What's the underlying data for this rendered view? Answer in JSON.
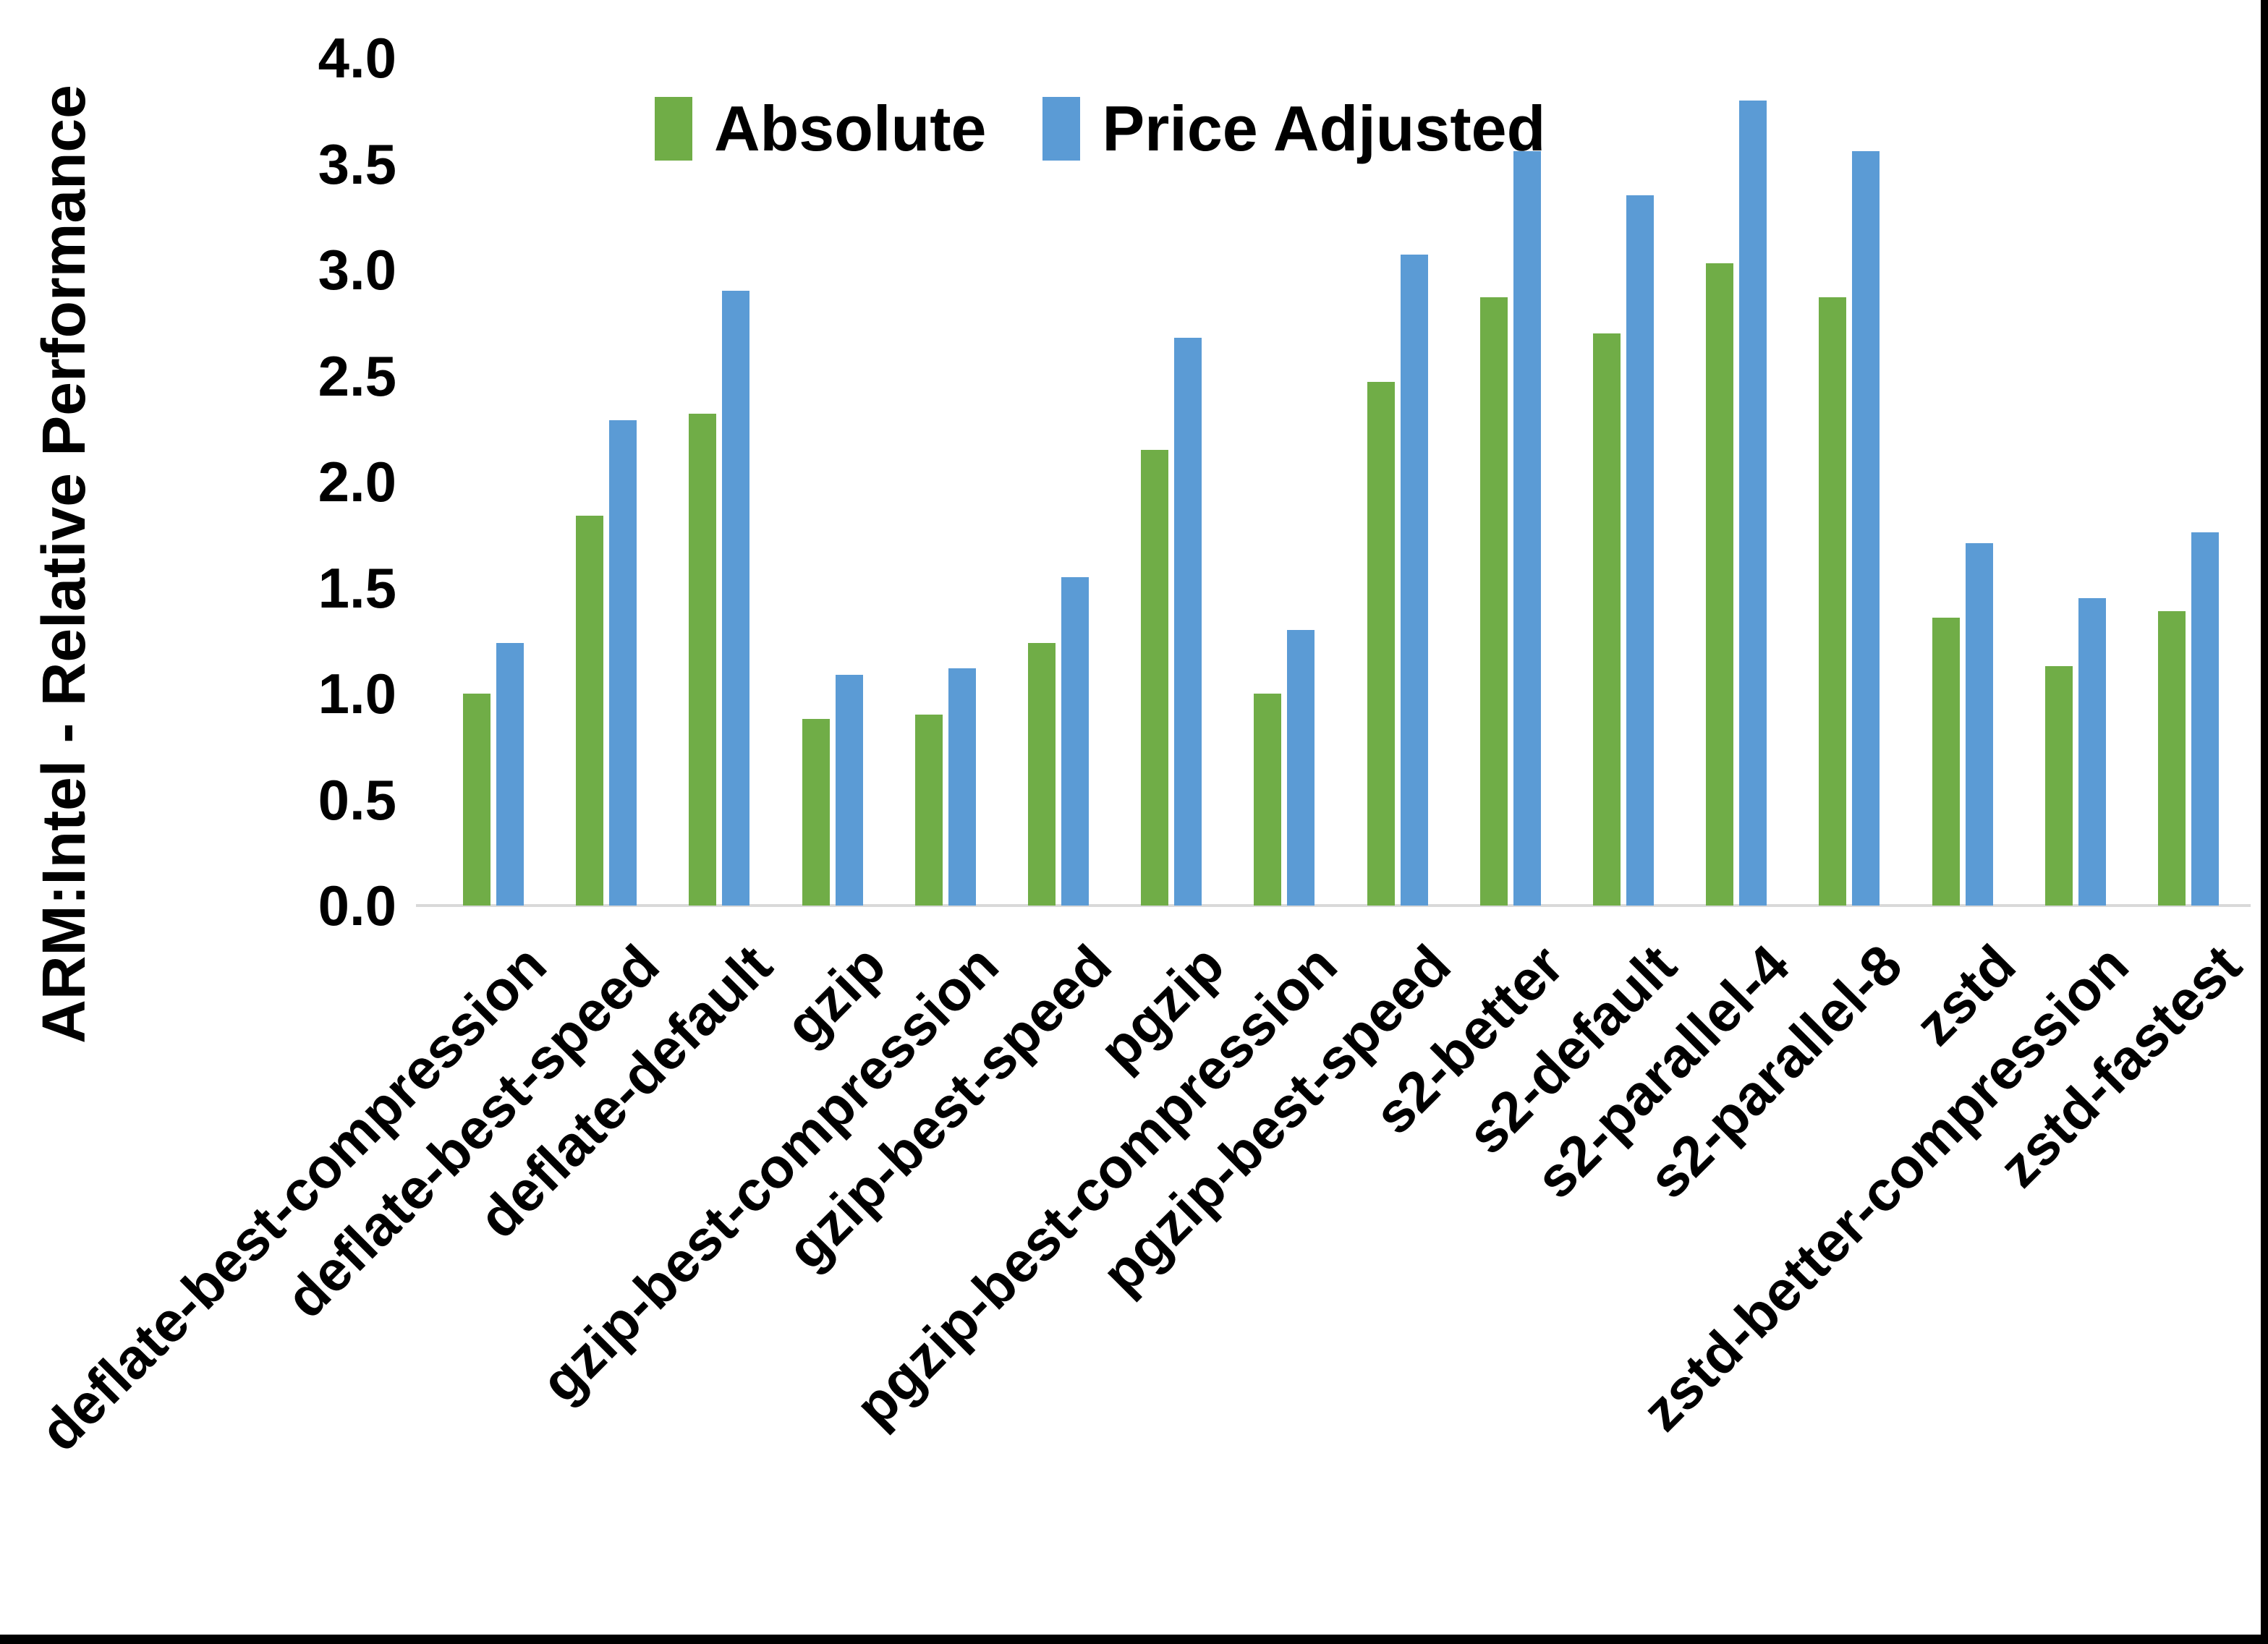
{
  "chart_data": {
    "type": "bar",
    "title": "",
    "ylabel": "ARM:Intel - Relative Performance",
    "xlabel": "",
    "ylim": [
      0,
      4
    ],
    "ytick_step": 0.5,
    "yticks": [
      "0.0",
      "0.5",
      "1.0",
      "1.5",
      "2.0",
      "2.5",
      "3.0",
      "3.5",
      "4.0"
    ],
    "grid": false,
    "legend_position": "top-center",
    "axis_line_color": "#d9d9d9",
    "text_color": "#000000",
    "categories": [
      "deflate-best-compression",
      "deflate-best-speed",
      "deflate-default",
      "gzip",
      "gzip-best-compression",
      "gzip-best-speed",
      "pgzip",
      "pgzip-best-compression",
      "pgzip-best-speed",
      "s2-better",
      "s2-default",
      "s2-parallel-4",
      "s2-parallel-8",
      "zstd",
      "zstd-better-compression",
      "zstd-fastest"
    ],
    "series": [
      {
        "name": "Absolute",
        "color": "#70AD47",
        "values": [
          1.0,
          1.84,
          2.32,
          0.88,
          0.9,
          1.24,
          2.15,
          1.0,
          2.47,
          2.87,
          2.7,
          3.03,
          2.87,
          1.36,
          1.13,
          1.39
        ]
      },
      {
        "name": "Price Adjusted",
        "color": "#5B9BD5",
        "values": [
          1.24,
          2.29,
          2.9,
          1.09,
          1.12,
          1.55,
          2.68,
          1.3,
          3.07,
          3.56,
          3.35,
          3.8,
          3.56,
          1.71,
          1.45,
          1.76
        ]
      }
    ]
  }
}
